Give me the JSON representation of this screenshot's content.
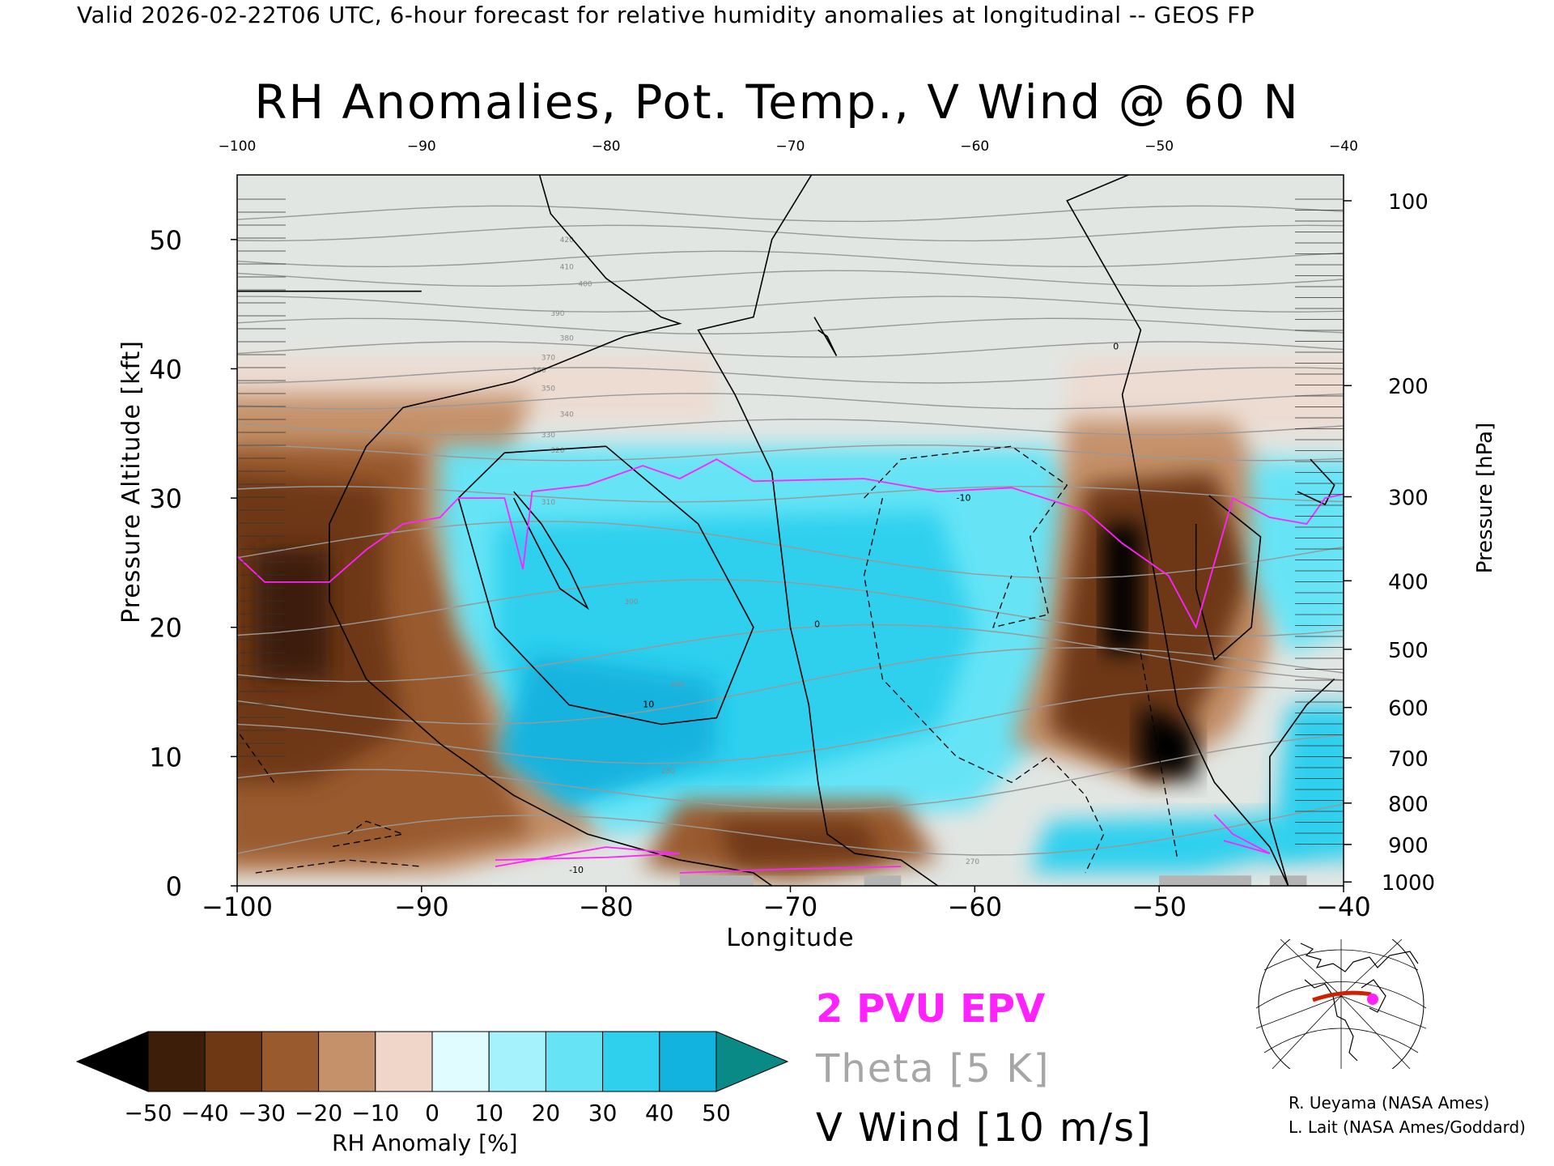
{
  "header": "Valid 2026-02-22T06 UTC, 6-hour forecast for relative humidity anomalies at longitudinal -- GEOS FP",
  "chart_data": {
    "type": "heatmap",
    "title": "RH Anomalies, Pot. Temp., V Wind @ 60 N",
    "xlabel": "Longitude",
    "ylabel": "Pressure Altitude [kft]",
    "y2label": "Pressure [hPa]",
    "xlim": [
      -100,
      -40
    ],
    "ylim": [
      0,
      55
    ],
    "x_ticks": [
      -100,
      -90,
      -80,
      -70,
      -60,
      -50,
      -40
    ],
    "x_tick_labels": [
      "−100",
      "−90",
      "−80",
      "−70",
      "−60",
      "−50",
      "−40"
    ],
    "top_x_tick_labels": [
      "−100",
      "−90",
      "−80",
      "−70",
      "−60",
      "−50",
      "−40"
    ],
    "y_ticks": [
      0,
      10,
      20,
      30,
      40,
      50
    ],
    "pressure_ticks": [
      {
        "hPa": "100",
        "kft": 53
      },
      {
        "hPa": "200",
        "kft": 38.7
      },
      {
        "hPa": "300",
        "kft": 30.1
      },
      {
        "hPa": "400",
        "kft": 23.6
      },
      {
        "hPa": "500",
        "kft": 18.3
      },
      {
        "hPa": "600",
        "kft": 13.8
      },
      {
        "hPa": "700",
        "kft": 9.9
      },
      {
        "hPa": "800",
        "kft": 6.4
      },
      {
        "hPa": "900",
        "kft": 3.2
      },
      {
        "hPa": "1000",
        "kft": 0.3
      }
    ],
    "theta_contour_labels": [
      "270",
      "280",
      "290",
      "300",
      "310",
      "320",
      "330",
      "340",
      "350",
      "360",
      "370",
      "380",
      "390",
      "400",
      "410",
      "420"
    ],
    "v_wind_contour_labels": [
      "-10",
      "0",
      "10"
    ],
    "colorbar": {
      "label": "RH Anomaly [%]",
      "ticks": [
        "−50",
        "−40",
        "−30",
        "−20",
        "−10",
        "0",
        "10",
        "20",
        "30",
        "40",
        "50"
      ],
      "colors": [
        "#000000",
        "#3d1e08",
        "#6e3815",
        "#995a2e",
        "#c4916a",
        "#efd6c8",
        "#e0fcff",
        "#a5f2fc",
        "#66e4f6",
        "#2ed0ee",
        "#13b3df",
        "#0a8fa8",
        "#0a8a86"
      ]
    },
    "legend": {
      "epv": "2 PVU EPV",
      "theta": "Theta [5 K]",
      "vwind": "V Wind [10 m/s]",
      "epv_color": "#ff22ff",
      "theta_color": "#a6a6a6"
    },
    "grid": false
  },
  "credits": [
    "R. Ueyama (NASA Ames)",
    "L. Lait (NASA Ames/Goddard)"
  ]
}
